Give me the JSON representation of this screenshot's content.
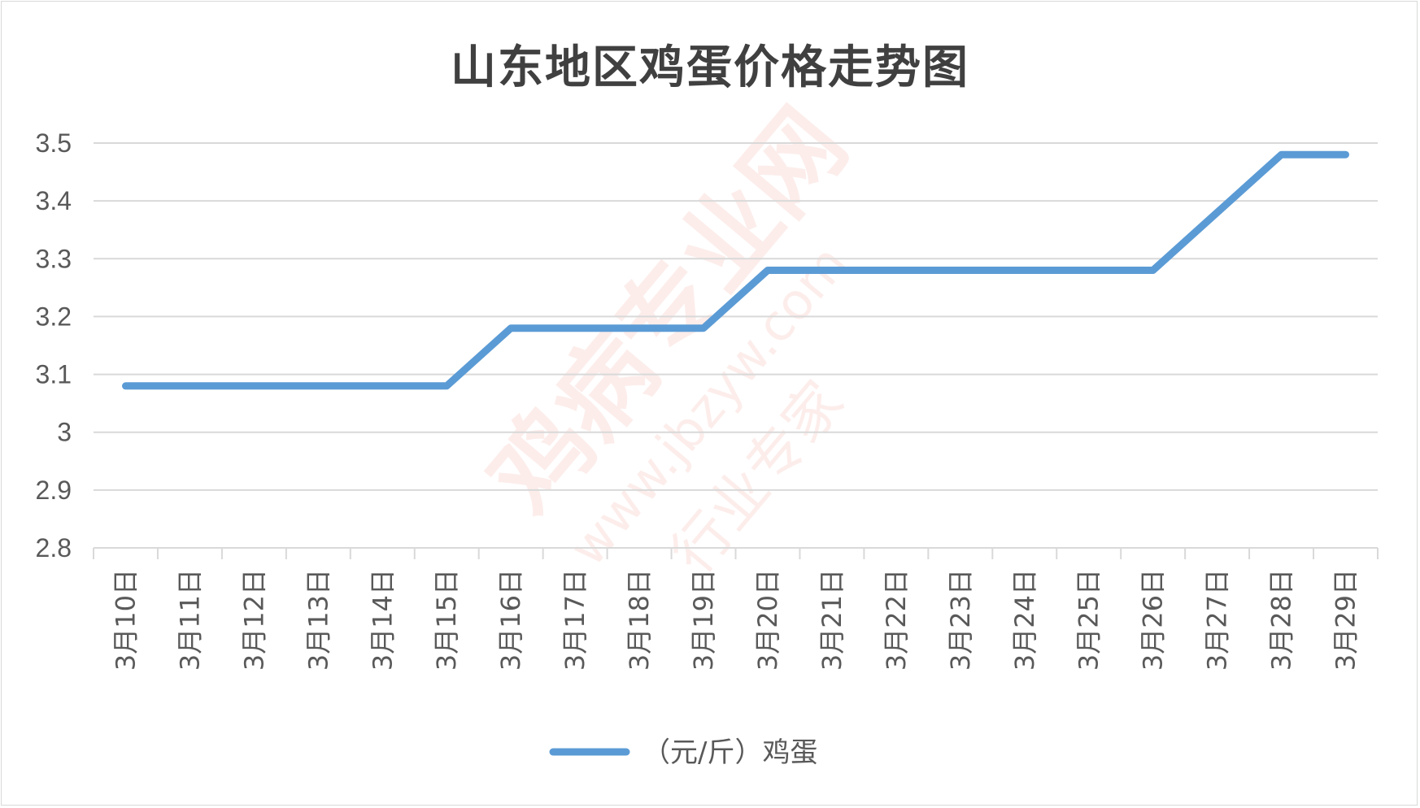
{
  "chart_data": {
    "type": "line",
    "title": "山东地区鸡蛋价格走势图",
    "categories": [
      "3月10日",
      "3月11日",
      "3月12日",
      "3月13日",
      "3月14日",
      "3月15日",
      "3月16日",
      "3月17日",
      "3月18日",
      "3月19日",
      "3月20日",
      "3月21日",
      "3月22日",
      "3月23日",
      "3月24日",
      "3月25日",
      "3月26日",
      "3月27日",
      "3月28日",
      "3月29日"
    ],
    "series": [
      {
        "name": "（元/斤）鸡蛋",
        "color": "#5b9bd5",
        "values": [
          3.08,
          3.08,
          3.08,
          3.08,
          3.08,
          3.08,
          3.18,
          3.18,
          3.18,
          3.18,
          3.28,
          3.28,
          3.28,
          3.28,
          3.28,
          3.28,
          3.28,
          3.38,
          3.48,
          3.48
        ]
      }
    ],
    "ylim": [
      2.8,
      3.5
    ],
    "yticks": [
      "2.8",
      "2.9",
      "3",
      "3.1",
      "3.2",
      "3.3",
      "3.4",
      "3.5"
    ],
    "grid": true,
    "legend_position": "bottom"
  },
  "watermark": {
    "brand": "鸡病专业网",
    "url": "www.jbzyw.com",
    "slogan": "行业专家"
  }
}
